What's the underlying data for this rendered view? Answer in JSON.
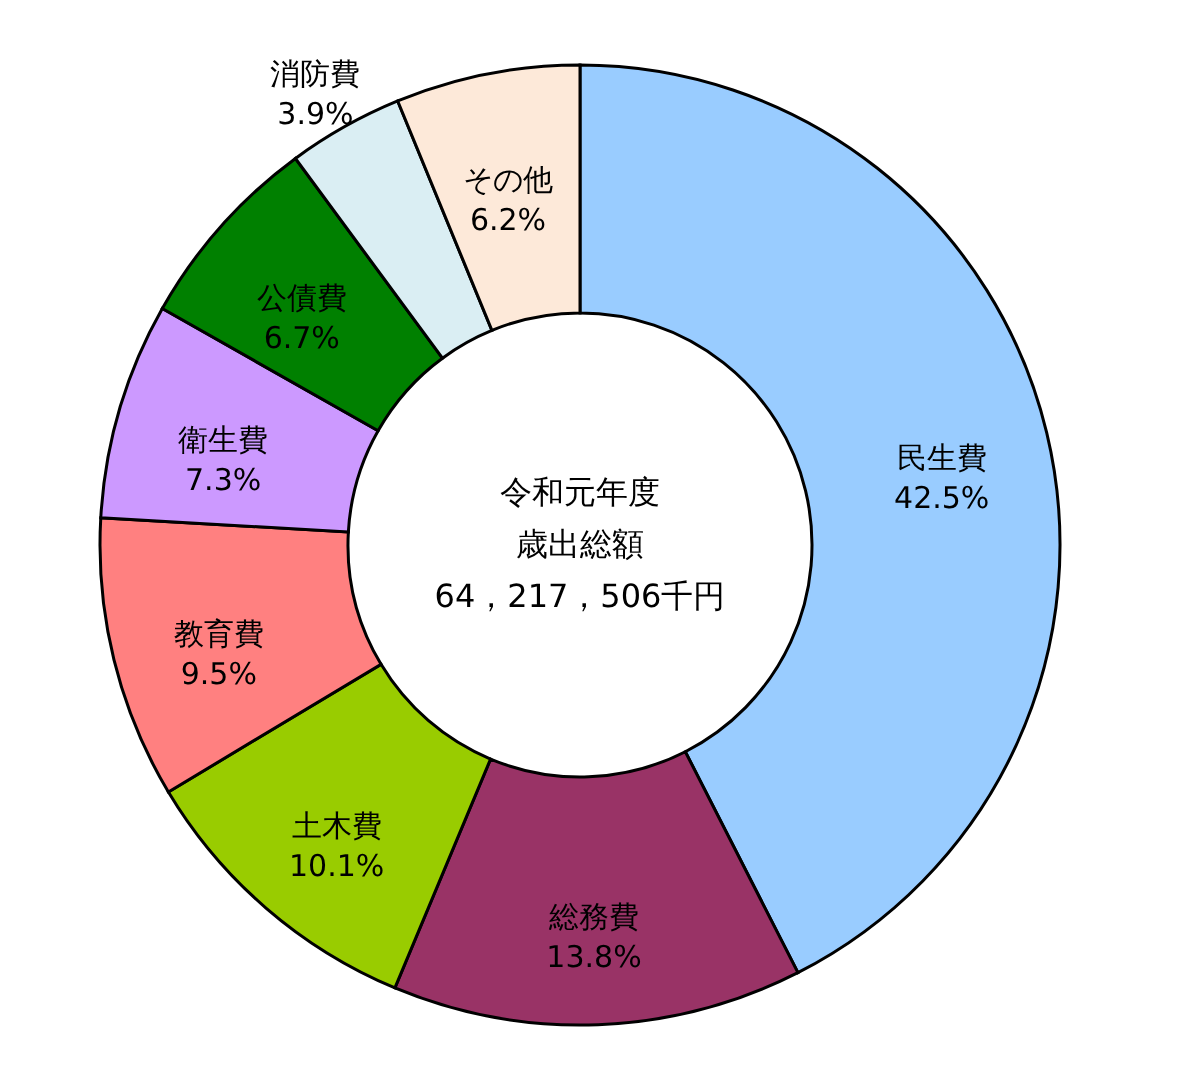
{
  "chart_data": {
    "type": "donut",
    "categories": [
      "民生費",
      "総務費",
      "土木費",
      "教育費",
      "衛生費",
      "公債費",
      "消防費",
      "その他"
    ],
    "values": [
      42.5,
      13.8,
      10.1,
      9.5,
      7.3,
      6.7,
      3.9,
      6.2
    ],
    "colors": [
      "#99ccff",
      "#993366",
      "#99cc00",
      "#ff8080",
      "#cc99ff",
      "#008000",
      "#daeef3",
      "#fde9d9"
    ],
    "value_labels": [
      "42.5%",
      "13.8%",
      "10.1%",
      "9.5%",
      "7.3%",
      "6.7%",
      "3.9%",
      "6.2%"
    ],
    "annotations": [
      "令和元年度",
      "歳出総額",
      "64，217，506千円"
    ]
  }
}
